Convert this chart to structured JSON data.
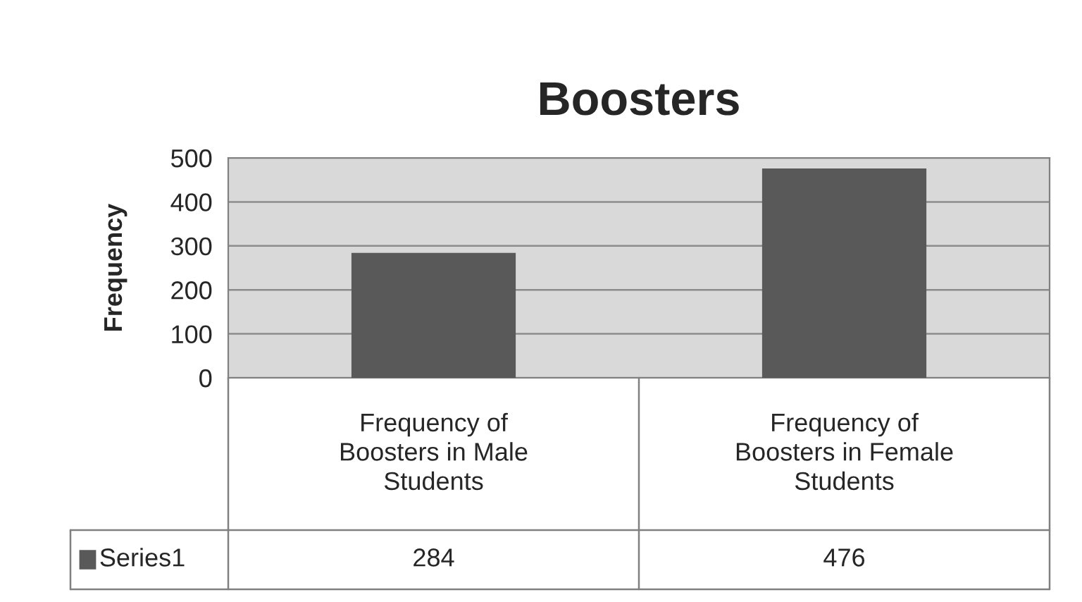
{
  "chart_data": {
    "type": "bar",
    "title": "Boosters",
    "ylabel": "Frequency",
    "categories": [
      "Frequency of\nBoosters in Male\nStudents",
      "Frequency of\nBoosters in Female\nStudents"
    ],
    "series": [
      {
        "name": "Series1",
        "color": "#595959",
        "values": [
          284,
          476
        ]
      }
    ],
    "ylim": [
      0,
      500
    ],
    "yticks": [
      0,
      100,
      200,
      300,
      400,
      500
    ],
    "grid": "y",
    "data_labels": true,
    "legend": "bottom left"
  }
}
